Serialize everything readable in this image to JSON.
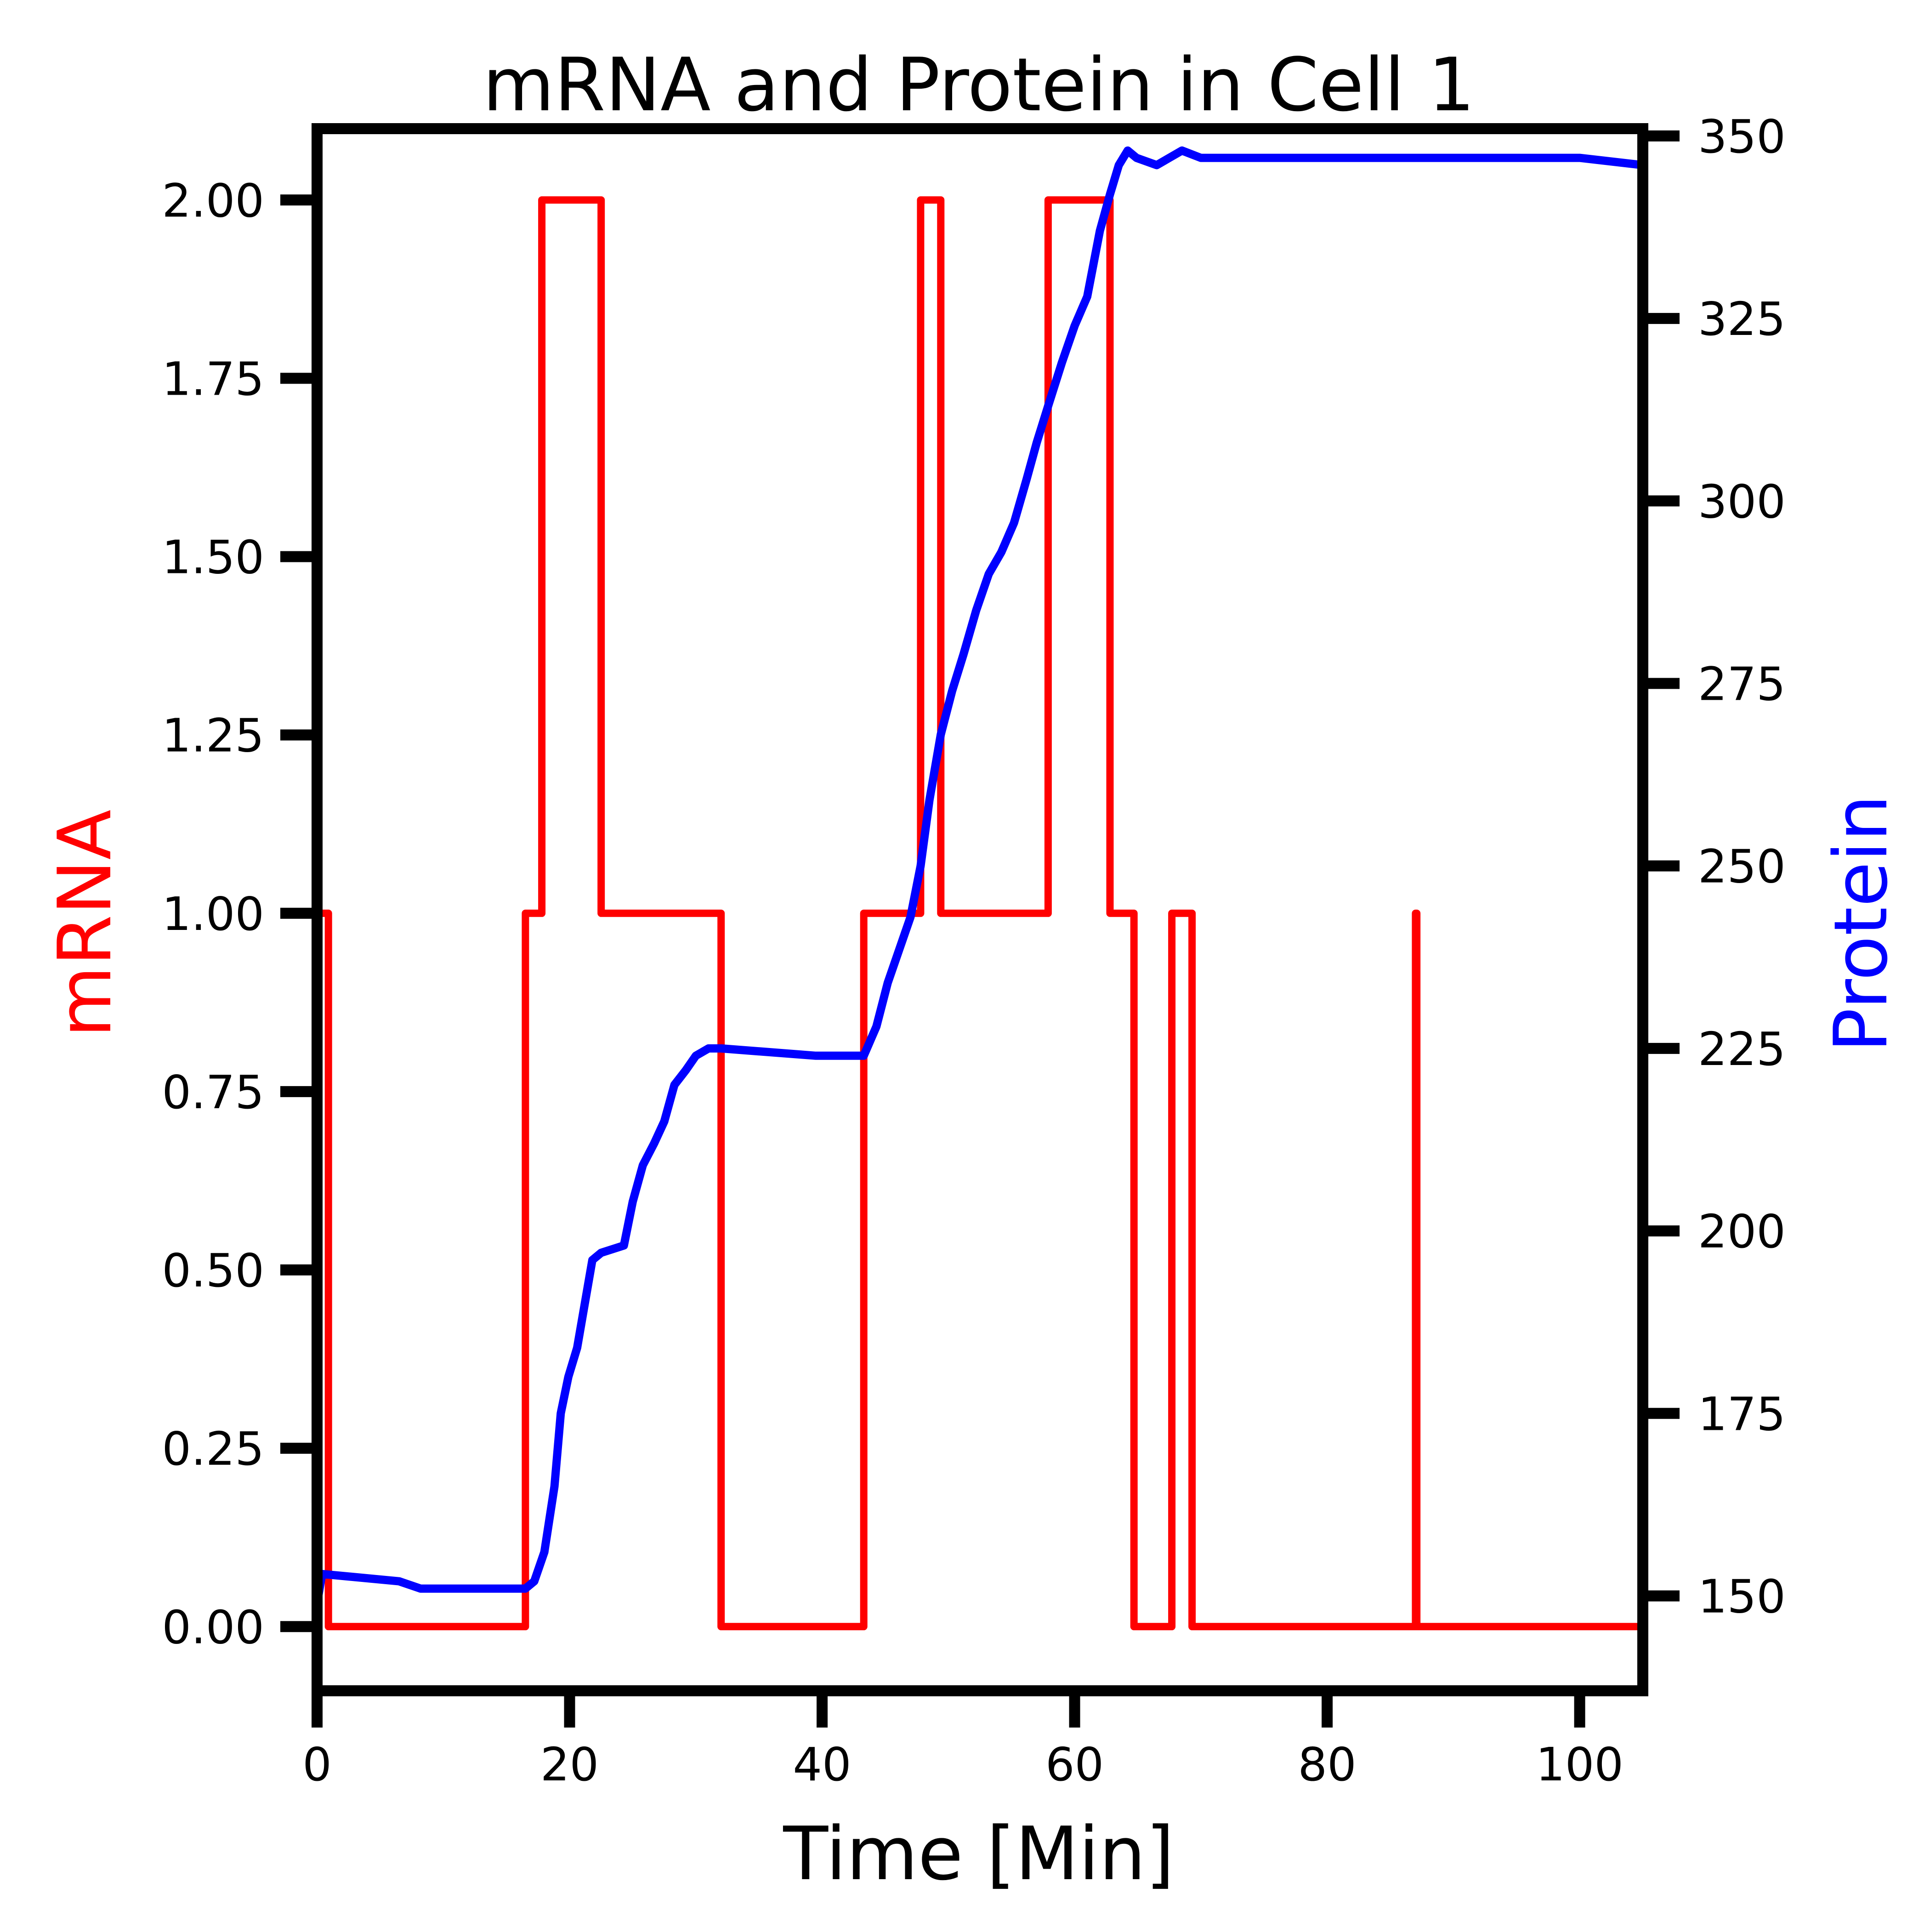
{
  "chart_data": {
    "type": "line",
    "title": "mRNA and Protein in Cell 1",
    "xlabel": "Time [Min]",
    "ylabel_left": "mRNA",
    "ylabel_right": "Protein",
    "xlim": [
      0,
      105
    ],
    "ylim_left": [
      -0.09,
      2.1
    ],
    "ylim_right": [
      137,
      351
    ],
    "x_ticks": [
      "0",
      "20",
      "40",
      "60",
      "80",
      "100"
    ],
    "y_left_ticks": [
      "0.00",
      "0.25",
      "0.50",
      "0.75",
      "1.00",
      "1.25",
      "1.50",
      "1.75",
      "2.00"
    ],
    "y_right_ticks": [
      "150",
      "175",
      "200",
      "225",
      "250",
      "275",
      "300",
      "325",
      "350"
    ],
    "grid": false,
    "series": [
      {
        "name": "mRNA",
        "axis": "left",
        "color": "#ff0000",
        "step": true,
        "x": [
          0,
          0.9,
          16.5,
          17.8,
          22.5,
          32.0,
          43.3,
          47.8,
          49.4,
          57.9,
          62.8,
          64.7,
          67.7,
          69.3,
          87.0,
          87.1,
          105
        ],
        "y": [
          1,
          0,
          1,
          2,
          1,
          0,
          1,
          2,
          1,
          2,
          1,
          0,
          1,
          0,
          1,
          0,
          0
        ]
      },
      {
        "name": "Protein",
        "axis": "right",
        "color": "#0000ff",
        "x": [
          0,
          0.4,
          6.5,
          8.2,
          16.5,
          17.2,
          18.0,
          18.8,
          19.3,
          19.9,
          20.6,
          21.2,
          21.8,
          22.5,
          24.3,
          25.0,
          25.8,
          26.7,
          27.5,
          28.3,
          29.2,
          30.0,
          31.0,
          32.0,
          39.5,
          43.3,
          44.3,
          45.2,
          46.0,
          47.0,
          47.8,
          48.5,
          49.4,
          50.3,
          51.2,
          52.2,
          53.2,
          54.2,
          55.2,
          56.2,
          57.0,
          57.9,
          59.0,
          60.0,
          61.0,
          62.0,
          62.8,
          63.5,
          64.2,
          64.9,
          66.5,
          67.5,
          68.5,
          70.0,
          100.0,
          105.0
        ],
        "y": [
          149,
          153,
          152,
          151,
          151,
          152,
          156,
          165,
          175,
          180,
          184,
          190,
          196,
          197,
          198,
          204,
          209,
          212,
          215,
          220,
          222,
          224,
          225,
          225,
          224,
          224,
          228,
          234,
          238,
          243,
          250,
          259,
          268,
          274,
          279,
          285,
          290,
          293,
          297,
          303,
          308,
          313,
          319,
          324,
          328,
          337,
          342,
          346,
          348,
          347,
          346,
          347,
          348,
          347,
          347,
          346
        ]
      }
    ]
  }
}
